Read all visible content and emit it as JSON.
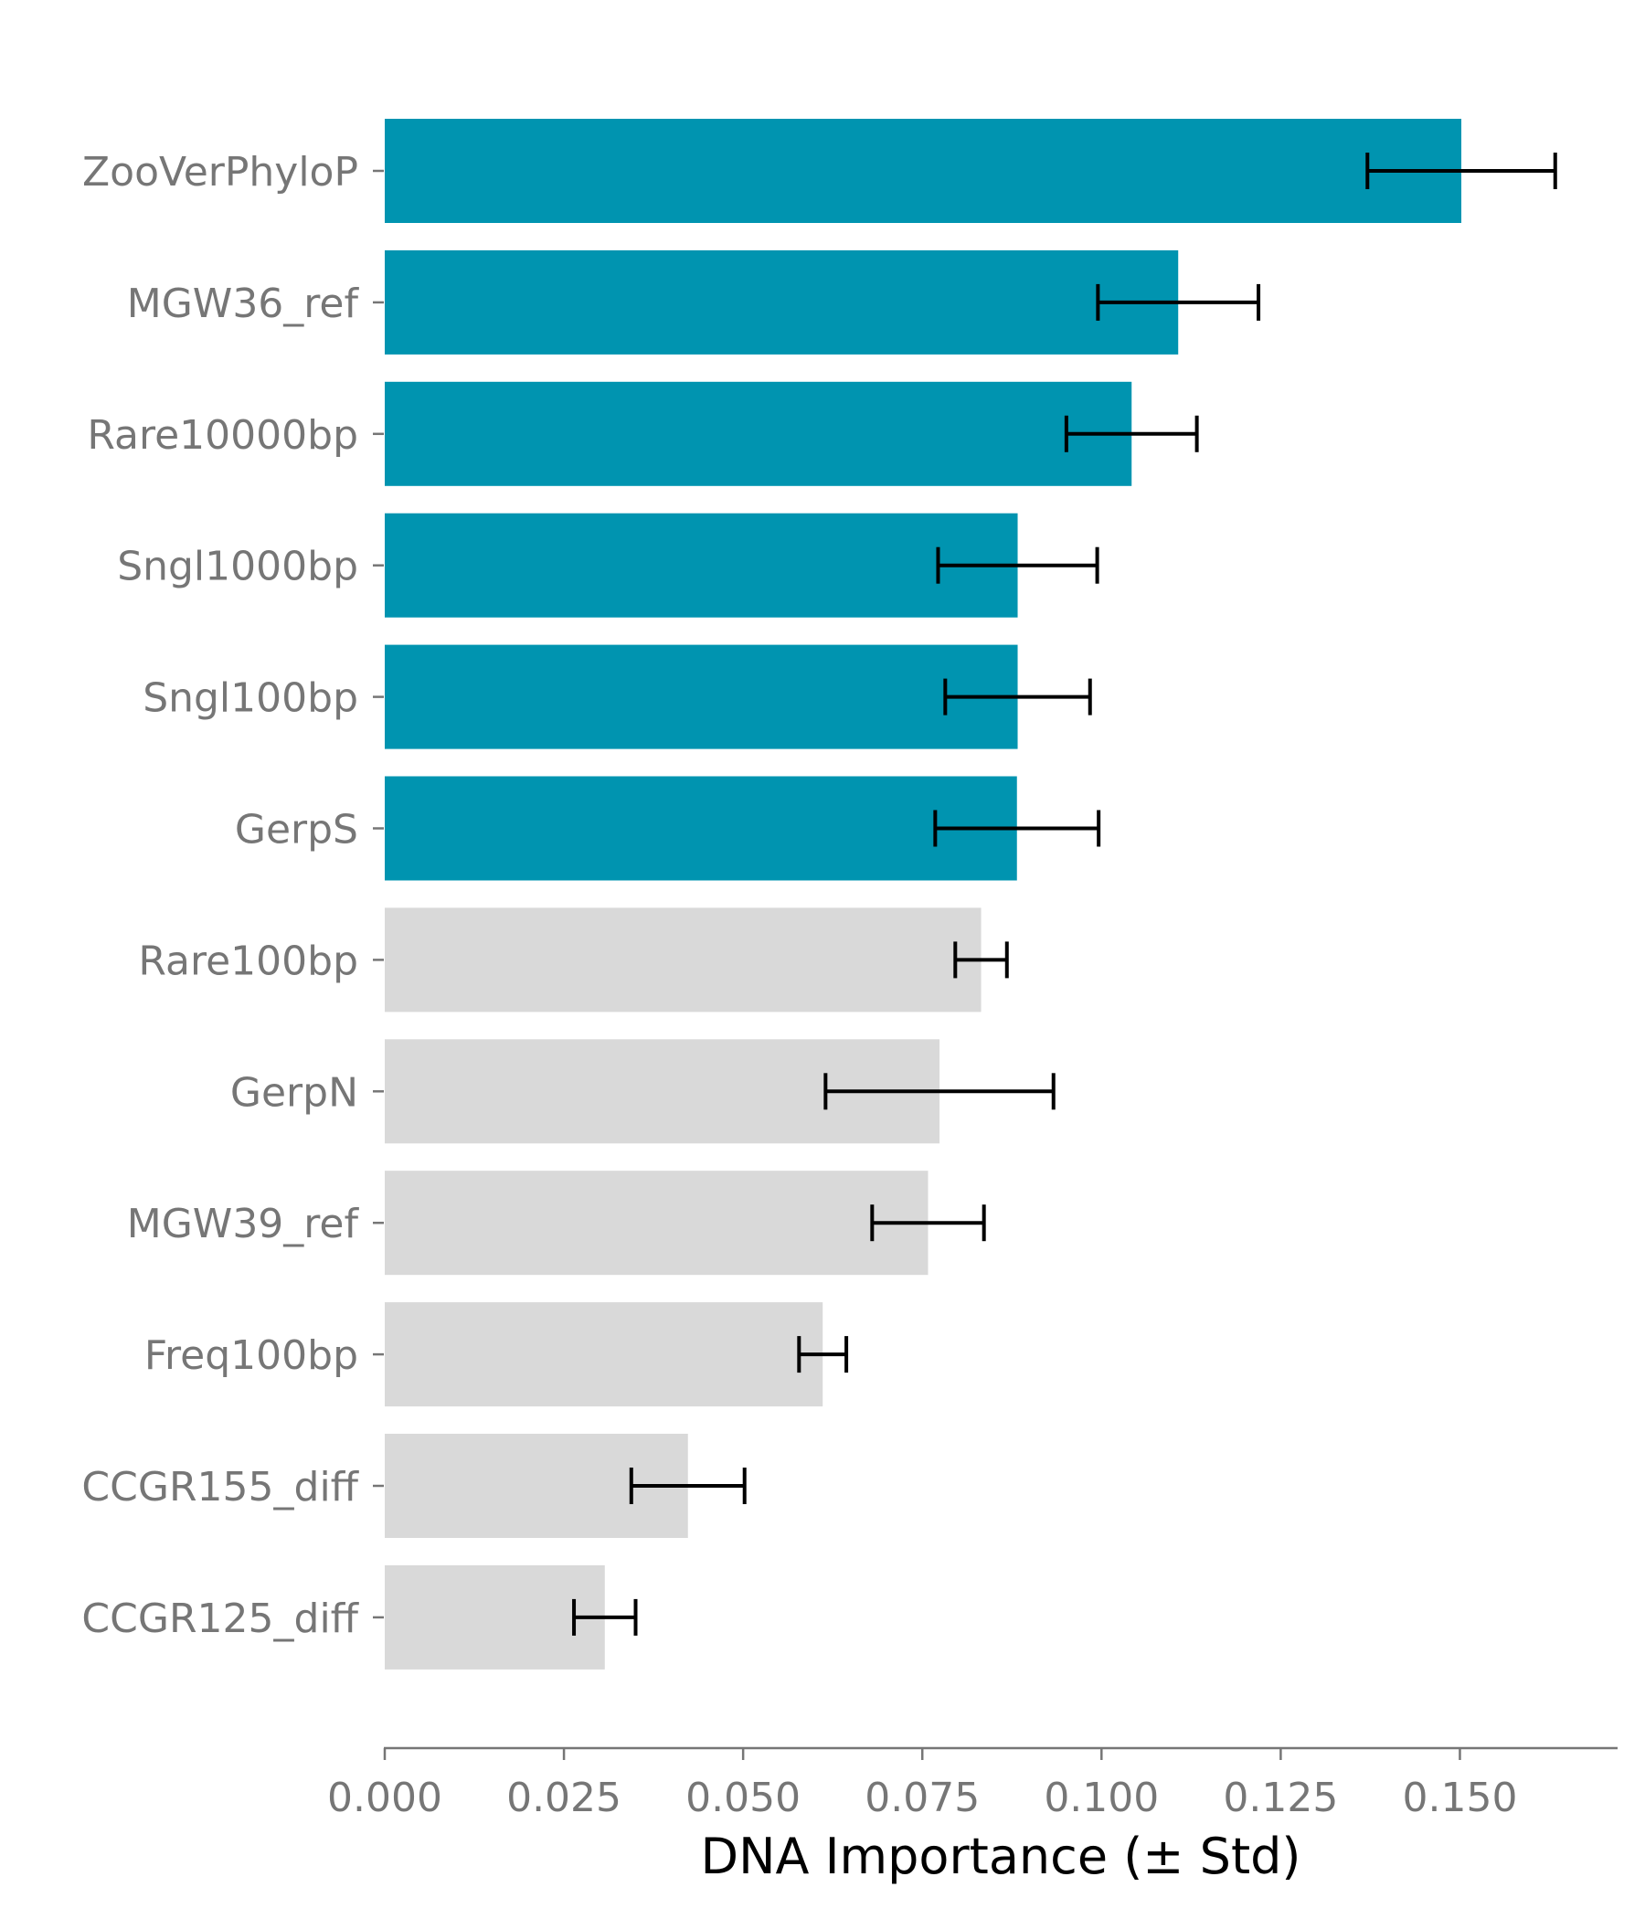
{
  "chart_data": {
    "type": "bar",
    "orientation": "horizontal",
    "title": "",
    "xlabel": "DNA Importance (± Std)",
    "ylabel": "",
    "xlim": [
      0,
      0.172
    ],
    "xticks": [
      "0.000",
      "0.025",
      "0.050",
      "0.075",
      "0.100",
      "0.125",
      "0.150"
    ],
    "grid": false,
    "highlight_color": "#0094b0",
    "base_color": "#d9d9d9",
    "categories": [
      "ZooVerPhyloP",
      "MGW36_ref",
      "Rare10000bp",
      "Sngl1000bp",
      "Sngl100bp",
      "GerpS",
      "Rare100bp",
      "GerpN",
      "MGW39_ref",
      "Freq100bp",
      "CCGR155_diff",
      "CCGR125_diff"
    ],
    "values": [
      0.1502,
      0.1107,
      0.1042,
      0.0883,
      0.0883,
      0.0882,
      0.0832,
      0.0774,
      0.0758,
      0.0611,
      0.0423,
      0.0307
    ],
    "errors": [
      0.0131,
      0.0112,
      0.0091,
      0.0111,
      0.0101,
      0.0114,
      0.0036,
      0.0159,
      0.0078,
      0.0033,
      0.0079,
      0.0043
    ],
    "highlighted": [
      true,
      true,
      true,
      true,
      true,
      true,
      false,
      false,
      false,
      false,
      false,
      false
    ]
  }
}
